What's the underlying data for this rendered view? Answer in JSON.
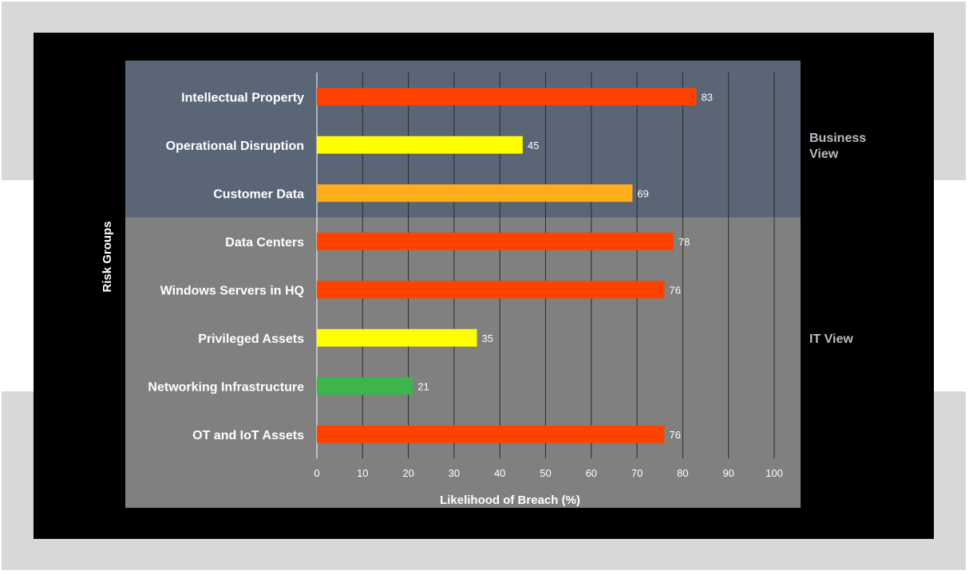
{
  "chart_data": {
    "type": "bar",
    "orientation": "horizontal",
    "categories": [
      "Intellectual Property",
      "Operational Disruption",
      "Customer Data",
      "Data Centers",
      "Windows Servers in HQ",
      "Privileged Assets",
      "Networking Infrastructure",
      "OT and IoT Assets"
    ],
    "values": [
      83,
      45,
      69,
      78,
      76,
      35,
      21,
      76
    ],
    "bar_colors": [
      "#ff4200",
      "#ffff00",
      "#ffad1a",
      "#ff4200",
      "#ff4200",
      "#ffff00",
      "#3cb54a",
      "#ff4200"
    ],
    "xlabel": "Likelihood of Breach (%)",
    "ylabel": "Risk Groups",
    "xlim": [
      0,
      100
    ],
    "xticks": [
      0,
      10,
      20,
      30,
      40,
      50,
      60,
      70,
      80,
      90,
      100
    ],
    "grid": "vertical",
    "groups": [
      {
        "label": "Business View",
        "label_lines": [
          "Business",
          "View"
        ],
        "start": 0,
        "end": 2,
        "color": "#5a6576"
      },
      {
        "label": "IT View",
        "label_lines": [
          "IT View"
        ],
        "start": 3,
        "end": 7,
        "color": "#808080"
      }
    ]
  }
}
